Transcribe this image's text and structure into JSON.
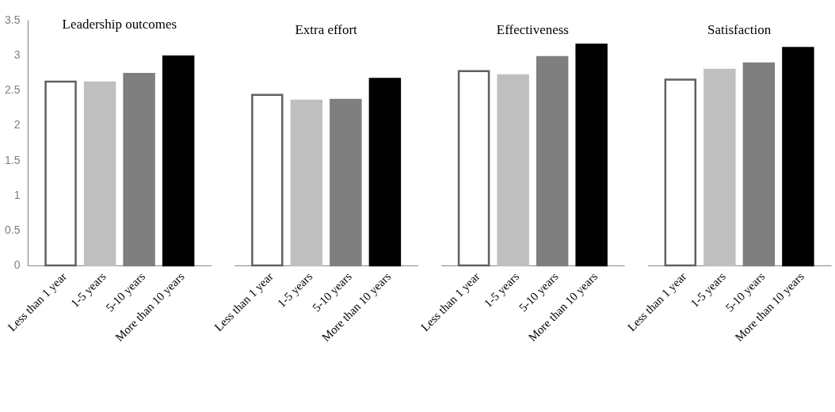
{
  "chart_data": [
    {
      "type": "bar",
      "title": "Leadership outcomes",
      "categories": [
        "Less than 1 year",
        "1-5 years",
        "5-10 years",
        "More than 10 years"
      ],
      "values": [
        2.62,
        2.61,
        2.73,
        2.98
      ],
      "colors": [
        "#ffffff",
        "#bfbfbf",
        "#7f7f7f",
        "#000000"
      ],
      "ylim": [
        0,
        3.5
      ],
      "yticks": [
        0,
        0.5,
        1,
        1.5,
        2,
        2.5,
        3,
        3.5
      ],
      "grid": false,
      "legend": false
    },
    {
      "type": "bar",
      "title": "Extra effort",
      "categories": [
        "Less than 1 year",
        "1-5 years",
        "5-10 years",
        "More than 10 years"
      ],
      "values": [
        2.43,
        2.35,
        2.36,
        2.66
      ],
      "colors": [
        "#ffffff",
        "#bfbfbf",
        "#7f7f7f",
        "#000000"
      ],
      "ylim": [
        0,
        3.5
      ],
      "tick_labels": "x",
      "grid": false,
      "legend": false
    },
    {
      "type": "bar",
      "title": "Effectiveness",
      "categories": [
        "Less than 1 year",
        "1-5 years",
        "5-10 years",
        "More than 10 years"
      ],
      "values": [
        2.77,
        2.71,
        2.97,
        3.15
      ],
      "colors": [
        "#ffffff",
        "#bfbfbf",
        "#7f7f7f",
        "#000000"
      ],
      "ylim": [
        0,
        3.5
      ],
      "tick_labels": "x",
      "grid": false,
      "legend": false
    },
    {
      "type": "bar",
      "title": "Satisfaction",
      "categories": [
        "Less than 1 year",
        "1-5 years",
        "5-10 years",
        "More than 10 years"
      ],
      "values": [
        2.65,
        2.79,
        2.88,
        3.1
      ],
      "colors": [
        "#ffffff",
        "#bfbfbf",
        "#7f7f7f",
        "#000000"
      ],
      "ylim": [
        0,
        3.5
      ],
      "tick_labels": "x",
      "grid": false,
      "legend": false
    }
  ]
}
